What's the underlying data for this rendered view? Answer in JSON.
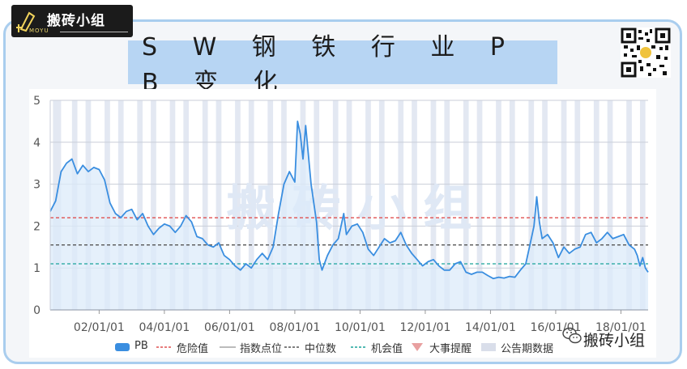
{
  "brand": {
    "name": "搬砖小组",
    "sub": "MOYU"
  },
  "title": "S W 钢 铁 行 业 P B 变 化",
  "watermark_big": "搬 砖 小 组",
  "watermark_label": "搬砖小组",
  "colors": {
    "pb_line": "#3a8ee0",
    "pb_fill": "#dcebfa",
    "danger": "#e05050",
    "median": "#555555",
    "opportunity": "#1aa39a",
    "announce_band": "#e3e8f2",
    "title_bg": "#b7d5f3",
    "frame": "#a9cdee"
  },
  "legend": [
    {
      "label": "PB",
      "color": "#3a8ee0",
      "kind": "area"
    },
    {
      "label": "危险值",
      "color": "#e05050",
      "kind": "dashed"
    },
    {
      "label": "指数点位",
      "color": "#bbbbbb",
      "kind": "line"
    },
    {
      "label": "中位数",
      "color": "#555555",
      "kind": "dashed"
    },
    {
      "label": "机会值",
      "color": "#1aa39a",
      "kind": "dashed"
    },
    {
      "label": "大事提醒",
      "color": "#e8a0a0",
      "kind": "triangle"
    },
    {
      "label": "公告期数据",
      "color": "#d9deea",
      "kind": "band"
    }
  ],
  "chart_data": {
    "type": "area",
    "x_start": "2000-07",
    "x_end": "2018-11",
    "x_ticks": [
      "02/01/01",
      "04/01/01",
      "06/01/01",
      "08/01/01",
      "10/01/01",
      "12/01/01",
      "14/01/01",
      "16/01/01",
      "18/01/01"
    ],
    "ylim": [
      0,
      5
    ],
    "y_ticks": [
      "0",
      "1",
      "2",
      "3",
      "4",
      "5"
    ],
    "grid": true,
    "legend_position": "bottom",
    "reference_lines": {
      "danger": 2.2,
      "median": 1.55,
      "opportunity": 1.1
    },
    "series": [
      {
        "name": "PB",
        "points": [
          [
            "2000-07",
            2.35
          ],
          [
            "2000-09",
            2.6
          ],
          [
            "2000-11",
            3.3
          ],
          [
            "2001-01",
            3.5
          ],
          [
            "2001-03",
            3.6
          ],
          [
            "2001-05",
            3.25
          ],
          [
            "2001-07",
            3.45
          ],
          [
            "2001-09",
            3.3
          ],
          [
            "2001-11",
            3.4
          ],
          [
            "2002-01",
            3.35
          ],
          [
            "2002-03",
            3.1
          ],
          [
            "2002-05",
            2.55
          ],
          [
            "2002-07",
            2.3
          ],
          [
            "2002-09",
            2.2
          ],
          [
            "2002-11",
            2.35
          ],
          [
            "2003-01",
            2.4
          ],
          [
            "2003-03",
            2.15
          ],
          [
            "2003-05",
            2.3
          ],
          [
            "2003-07",
            2.0
          ],
          [
            "2003-09",
            1.8
          ],
          [
            "2003-11",
            1.95
          ],
          [
            "2004-01",
            2.05
          ],
          [
            "2004-03",
            2.0
          ],
          [
            "2004-05",
            1.85
          ],
          [
            "2004-07",
            2.0
          ],
          [
            "2004-09",
            2.25
          ],
          [
            "2004-11",
            2.1
          ],
          [
            "2005-01",
            1.75
          ],
          [
            "2005-03",
            1.7
          ],
          [
            "2005-05",
            1.55
          ],
          [
            "2005-07",
            1.5
          ],
          [
            "2005-09",
            1.6
          ],
          [
            "2005-11",
            1.3
          ],
          [
            "2006-01",
            1.2
          ],
          [
            "2006-03",
            1.05
          ],
          [
            "2006-05",
            0.95
          ],
          [
            "2006-07",
            1.1
          ],
          [
            "2006-09",
            1.0
          ],
          [
            "2006-11",
            1.2
          ],
          [
            "2007-01",
            1.35
          ],
          [
            "2007-03",
            1.2
          ],
          [
            "2007-05",
            1.5
          ],
          [
            "2007-07",
            2.3
          ],
          [
            "2007-09",
            3.0
          ],
          [
            "2007-11",
            3.3
          ],
          [
            "2008-01",
            3.05
          ],
          [
            "2008-02",
            4.5
          ],
          [
            "2008-03",
            4.2
          ],
          [
            "2008-04",
            3.6
          ],
          [
            "2008-05",
            4.4
          ],
          [
            "2008-07",
            3.0
          ],
          [
            "2008-09",
            2.1
          ],
          [
            "2008-10",
            1.2
          ],
          [
            "2008-11",
            0.95
          ],
          [
            "2009-01",
            1.3
          ],
          [
            "2009-03",
            1.55
          ],
          [
            "2009-05",
            1.7
          ],
          [
            "2009-07",
            2.3
          ],
          [
            "2009-08",
            1.8
          ],
          [
            "2009-10",
            2.0
          ],
          [
            "2009-12",
            2.05
          ],
          [
            "2010-02",
            1.85
          ],
          [
            "2010-04",
            1.45
          ],
          [
            "2010-06",
            1.3
          ],
          [
            "2010-08",
            1.5
          ],
          [
            "2010-10",
            1.7
          ],
          [
            "2010-12",
            1.6
          ],
          [
            "2011-02",
            1.65
          ],
          [
            "2011-04",
            1.85
          ],
          [
            "2011-06",
            1.55
          ],
          [
            "2011-08",
            1.35
          ],
          [
            "2011-10",
            1.2
          ],
          [
            "2011-12",
            1.05
          ],
          [
            "2012-02",
            1.15
          ],
          [
            "2012-04",
            1.2
          ],
          [
            "2012-06",
            1.05
          ],
          [
            "2012-08",
            0.95
          ],
          [
            "2012-10",
            0.95
          ],
          [
            "2012-12",
            1.1
          ],
          [
            "2013-02",
            1.15
          ],
          [
            "2013-04",
            0.9
          ],
          [
            "2013-06",
            0.85
          ],
          [
            "2013-08",
            0.9
          ],
          [
            "2013-10",
            0.9
          ],
          [
            "2013-12",
            0.82
          ],
          [
            "2014-02",
            0.75
          ],
          [
            "2014-04",
            0.78
          ],
          [
            "2014-06",
            0.76
          ],
          [
            "2014-08",
            0.8
          ],
          [
            "2014-10",
            0.78
          ],
          [
            "2014-12",
            0.95
          ],
          [
            "2015-02",
            1.1
          ],
          [
            "2015-04",
            1.7
          ],
          [
            "2015-05",
            2.0
          ],
          [
            "2015-06",
            2.7
          ],
          [
            "2015-07",
            2.1
          ],
          [
            "2015-08",
            1.7
          ],
          [
            "2015-10",
            1.8
          ],
          [
            "2015-12",
            1.6
          ],
          [
            "2016-02",
            1.25
          ],
          [
            "2016-04",
            1.5
          ],
          [
            "2016-06",
            1.35
          ],
          [
            "2016-08",
            1.45
          ],
          [
            "2016-10",
            1.5
          ],
          [
            "2016-12",
            1.8
          ],
          [
            "2017-02",
            1.85
          ],
          [
            "2017-04",
            1.6
          ],
          [
            "2017-06",
            1.7
          ],
          [
            "2017-08",
            1.85
          ],
          [
            "2017-10",
            1.7
          ],
          [
            "2017-12",
            1.75
          ],
          [
            "2018-02",
            1.8
          ],
          [
            "2018-04",
            1.55
          ],
          [
            "2018-06",
            1.45
          ],
          [
            "2018-07",
            1.3
          ],
          [
            "2018-08",
            1.05
          ],
          [
            "2018-09",
            1.25
          ],
          [
            "2018-10",
            1.0
          ],
          [
            "2018-11",
            0.9
          ]
        ]
      }
    ],
    "announcement_periods": [
      [
        "2000-08",
        "2000-11"
      ],
      [
        "2001-03",
        "2001-05"
      ],
      [
        "2001-08",
        "2001-10"
      ],
      [
        "2002-03",
        "2002-05"
      ],
      [
        "2002-08",
        "2002-10"
      ],
      [
        "2003-03",
        "2003-05"
      ],
      [
        "2003-08",
        "2003-10"
      ],
      [
        "2004-03",
        "2004-05"
      ],
      [
        "2004-08",
        "2004-10"
      ],
      [
        "2005-03",
        "2005-05"
      ],
      [
        "2005-08",
        "2005-10"
      ],
      [
        "2006-03",
        "2006-05"
      ],
      [
        "2006-08",
        "2006-10"
      ],
      [
        "2007-03",
        "2007-05"
      ],
      [
        "2007-08",
        "2007-10"
      ],
      [
        "2008-03",
        "2008-05"
      ],
      [
        "2008-08",
        "2008-10"
      ],
      [
        "2009-03",
        "2009-05"
      ],
      [
        "2009-08",
        "2009-10"
      ],
      [
        "2010-03",
        "2010-05"
      ],
      [
        "2010-08",
        "2010-10"
      ],
      [
        "2011-03",
        "2011-05"
      ],
      [
        "2011-08",
        "2011-10"
      ],
      [
        "2012-03",
        "2012-05"
      ],
      [
        "2012-08",
        "2012-10"
      ],
      [
        "2013-03",
        "2013-05"
      ],
      [
        "2013-08",
        "2013-10"
      ],
      [
        "2014-03",
        "2014-05"
      ],
      [
        "2014-08",
        "2014-10"
      ],
      [
        "2015-03",
        "2015-05"
      ],
      [
        "2015-08",
        "2015-10"
      ],
      [
        "2016-03",
        "2016-05"
      ],
      [
        "2016-08",
        "2016-10"
      ],
      [
        "2017-03",
        "2017-05"
      ],
      [
        "2017-08",
        "2017-10"
      ],
      [
        "2018-03",
        "2018-05"
      ],
      [
        "2018-08",
        "2018-10"
      ]
    ]
  }
}
